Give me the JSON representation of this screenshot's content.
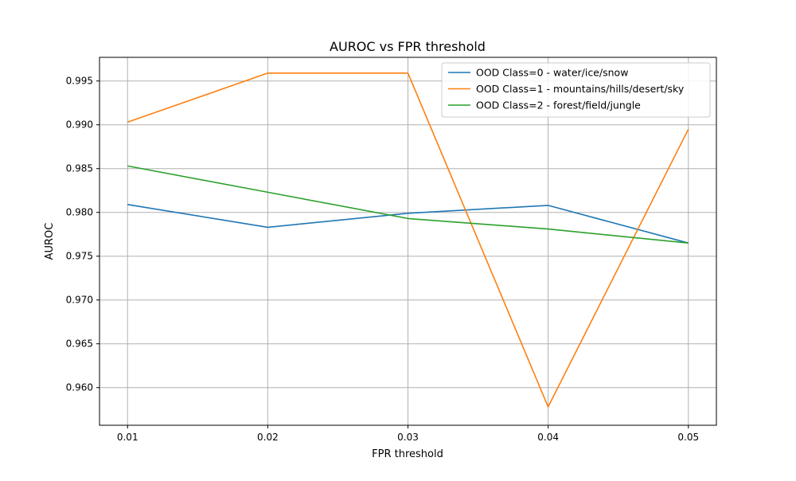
{
  "chart_data": {
    "type": "line",
    "title": "AUROC vs FPR threshold",
    "xlabel": "FPR threshold",
    "ylabel": "AUROC",
    "x": [
      0.01,
      0.02,
      0.03,
      0.04,
      0.05
    ],
    "x_tick_labels": [
      "0.01",
      "0.02",
      "0.03",
      "0.04",
      "0.05"
    ],
    "y_ticks": [
      0.96,
      0.965,
      0.97,
      0.975,
      0.98,
      0.985,
      0.99,
      0.995
    ],
    "y_tick_labels": [
      "0.960",
      "0.965",
      "0.970",
      "0.975",
      "0.980",
      "0.985",
      "0.990",
      "0.995"
    ],
    "xlim": [
      0.008,
      0.052
    ],
    "ylim": [
      0.9557,
      0.9977
    ],
    "grid": true,
    "legend_position": "top-right",
    "series": [
      {
        "name": "OOD Class=0 - water/ice/snow",
        "color": "#1f77b4",
        "values": [
          0.9809,
          0.9783,
          0.9799,
          0.9808,
          0.9765
        ]
      },
      {
        "name": "OOD Class=1 - mountains/hills/desert/sky",
        "color": "#ff7f0e",
        "values": [
          0.9903,
          0.9959,
          0.9959,
          0.9578,
          0.9895
        ]
      },
      {
        "name": "OOD Class=2 - forest/field/jungle",
        "color": "#2ca02c",
        "values": [
          0.9853,
          0.9823,
          0.9793,
          0.9781,
          0.9765
        ]
      }
    ]
  }
}
